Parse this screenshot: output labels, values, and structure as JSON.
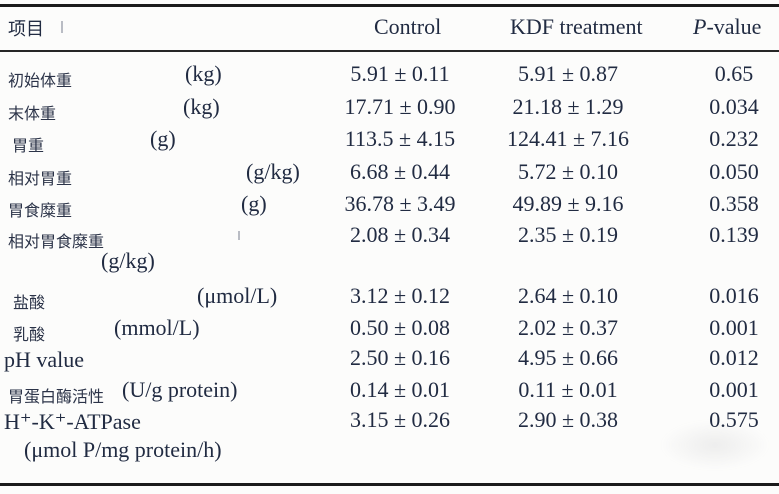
{
  "table": {
    "header": {
      "item": "项目",
      "control": "Control",
      "kdf": "KDF treatment",
      "pvalue_italic": "P",
      "pvalue_rest": "-value"
    },
    "rows": [
      {
        "name": "初始体重",
        "unit": "(kg)",
        "control": "5.91 ± 0.11",
        "kdf": "5.91 ± 0.87",
        "p": "0.65"
      },
      {
        "name": "末体重",
        "unit": "(kg)",
        "control": "17.71 ± 0.90",
        "kdf": "21.18 ± 1.29",
        "p": "0.034"
      },
      {
        "name": "胃重",
        "unit": "(g)",
        "control": "113.5 ± 4.15",
        "kdf": "124.41 ± 7.16",
        "p": "0.232"
      },
      {
        "name": "相对胃重",
        "unit": "(g/kg)",
        "control": "6.68 ± 0.44",
        "kdf": "5.72 ± 0.10",
        "p": "0.050"
      },
      {
        "name": "胃食糜重",
        "unit": "(g)",
        "control": "36.78 ± 3.49",
        "kdf": "49.89 ± 9.16",
        "p": "0.358"
      },
      {
        "name": "相对胃食糜重",
        "unit2": "(g/kg)",
        "control": "2.08 ± 0.34",
        "kdf": "2.35 ± 0.19",
        "p": "0.139"
      },
      {
        "name": "盐酸",
        "unit": "(μmol/L)",
        "control": "3.12 ± 0.12",
        "kdf": "2.64 ± 0.10",
        "p": "0.016"
      },
      {
        "name": "乳酸",
        "unit": "(mmol/L)",
        "control": "0.50 ± 0.08",
        "kdf": "2.02 ± 0.37",
        "p": "0.001"
      },
      {
        "name": "pH value",
        "control": "2.50 ± 0.16",
        "kdf": "4.95 ± 0.66",
        "p": "0.012"
      },
      {
        "name": "胃蛋白酶活性",
        "unit": "(U/g protein)",
        "control": "0.14 ± 0.01",
        "kdf": "0.11 ± 0.01",
        "p": "0.001"
      },
      {
        "name": "H⁺-K⁺-ATPase",
        "unit2": "(μmol P/mg protein/h)",
        "control": "3.15 ± 0.26",
        "kdf": "2.90 ± 0.38",
        "p": "0.575"
      }
    ]
  }
}
